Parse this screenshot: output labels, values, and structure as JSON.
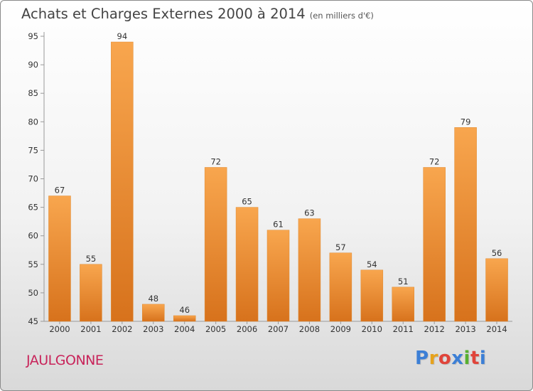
{
  "header": {
    "title": "Achats et Charges Externes 2000 à 2014",
    "unit": "(en milliers d'€)"
  },
  "footer": {
    "commune": "JAULGONNE",
    "logo_letters": [
      "P",
      "r",
      "o",
      "x",
      "i",
      "t",
      "i"
    ],
    "logo_colors": [
      "#3c7fd6",
      "#e6a21c",
      "#e0443a",
      "#3c7fd6",
      "#58b030",
      "#e0443a",
      "#3c7fd6"
    ]
  },
  "chart_data": {
    "type": "bar",
    "title": "Achats et Charges Externes 2000 à 2014",
    "categories": [
      "2000",
      "2001",
      "2002",
      "2003",
      "2004",
      "2005",
      "2006",
      "2007",
      "2008",
      "2009",
      "2010",
      "2011",
      "2012",
      "2013",
      "2014"
    ],
    "values": [
      67,
      55,
      94,
      48,
      46,
      72,
      65,
      61,
      63,
      57,
      54,
      51,
      72,
      79,
      56
    ],
    "ylim": [
      45,
      95
    ],
    "yticks": [
      45,
      50,
      55,
      60,
      65,
      70,
      75,
      80,
      85,
      90,
      95
    ],
    "grid": false,
    "bar_color": "#f39c3d"
  }
}
